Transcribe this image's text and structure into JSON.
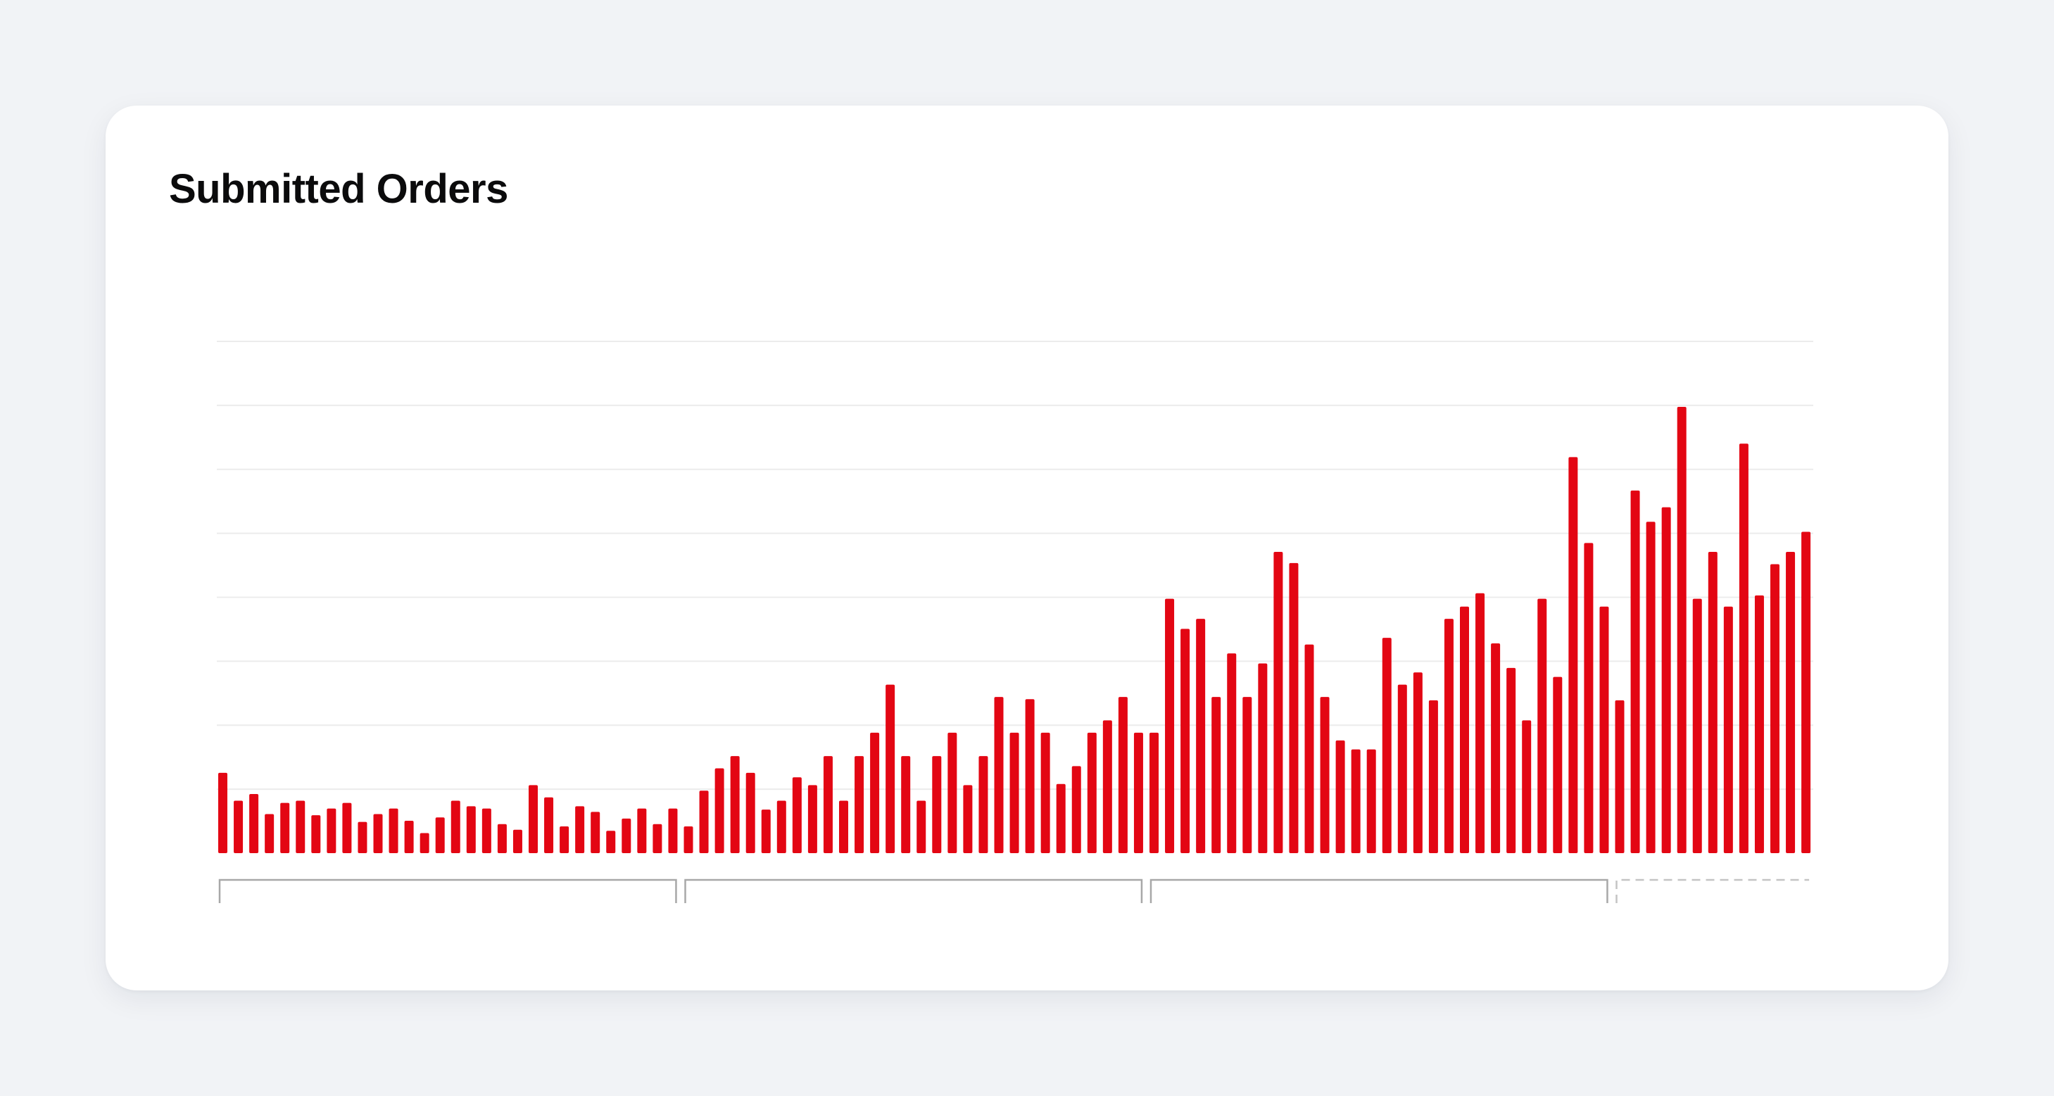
{
  "card": {
    "title": "Submitted Orders"
  },
  "colors": {
    "page_background": "#f1f3f6",
    "card_background": "#ffffff",
    "bar": "#e30613",
    "gridline": "#ececec",
    "bracket": "#a8a8a8",
    "bracket_dashed": "#c4c4c4"
  },
  "chart_data": {
    "type": "bar",
    "title": "Submitted Orders",
    "xlabel": "",
    "ylabel": "",
    "ylim": [
      0,
      400
    ],
    "grid": true,
    "legend": "none",
    "values": [
      72,
      47,
      53,
      35,
      45,
      47,
      34,
      40,
      45,
      28,
      35,
      40,
      29,
      18,
      32,
      47,
      42,
      40,
      26,
      21,
      61,
      50,
      24,
      42,
      37,
      20,
      31,
      40,
      26,
      40,
      24,
      56,
      76,
      87,
      72,
      39,
      47,
      68,
      61,
      87,
      47,
      87,
      108,
      151,
      87,
      47,
      87,
      108,
      61,
      87,
      140,
      108,
      138,
      108,
      62,
      78,
      108,
      119,
      140,
      108,
      108,
      228,
      201,
      210,
      140,
      179,
      140,
      170,
      270,
      260,
      187,
      140,
      101,
      93,
      93,
      193,
      151,
      162,
      137,
      210,
      221,
      233,
      188,
      166,
      119,
      228,
      158,
      355,
      278,
      221,
      137,
      325,
      297,
      310,
      400,
      228,
      270,
      221,
      367,
      231,
      259,
      270,
      288
    ],
    "groups": [
      {
        "range": [
          1,
          30
        ],
        "style": "solid"
      },
      {
        "range": [
          31,
          60
        ],
        "style": "solid"
      },
      {
        "range": [
          61,
          90
        ],
        "style": "solid"
      },
      {
        "range": [
          91,
          103
        ],
        "style": "dashed"
      }
    ]
  }
}
